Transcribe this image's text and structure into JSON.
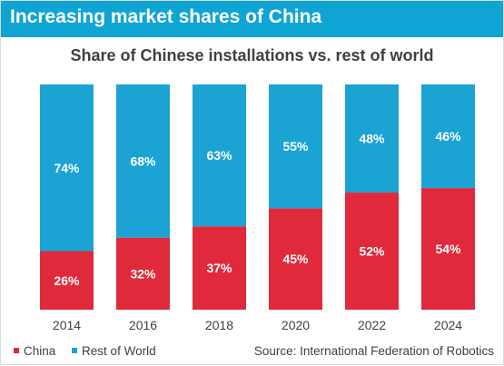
{
  "banner": {
    "title": "Increasing market shares of China"
  },
  "colors": {
    "banner": "#0ea5d4",
    "china": "#e0293a",
    "rest_of_world": "#1ba3d4"
  },
  "source": "Source: International Federation of Robotics",
  "chart_data": {
    "type": "bar",
    "stacked": true,
    "title": "Share of Chinese installations vs. rest of world",
    "xlabel": "",
    "ylabel": "",
    "ylim": [
      0,
      100
    ],
    "grid": false,
    "legend_position": "bottom-left",
    "categories": [
      "2014",
      "2016",
      "2018",
      "2020",
      "2022",
      "2024"
    ],
    "series": [
      {
        "name": "China",
        "values": [
          26,
          32,
          37,
          45,
          52,
          54
        ],
        "labels": [
          "26%",
          "32%",
          "37%",
          "45%",
          "52%",
          "54%"
        ],
        "color": "#e0293a"
      },
      {
        "name": "Rest of World",
        "values": [
          74,
          68,
          63,
          55,
          48,
          46
        ],
        "labels": [
          "74%",
          "68%",
          "63%",
          "55%",
          "48%",
          "46%"
        ],
        "color": "#1ba3d4"
      }
    ]
  }
}
